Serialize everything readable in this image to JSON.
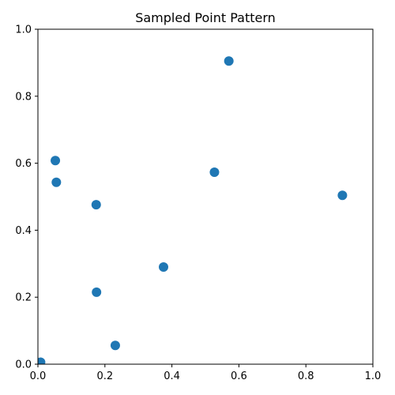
{
  "chart_data": {
    "type": "scatter",
    "title": "Sampled Point Pattern",
    "xlabel": "",
    "ylabel": "",
    "xlim": [
      0,
      1
    ],
    "ylim": [
      0,
      1
    ],
    "grid": false,
    "x_ticks": [
      {
        "value": 0.0,
        "label": "0.0"
      },
      {
        "value": 0.2,
        "label": "0.2"
      },
      {
        "value": 0.4,
        "label": "0.4"
      },
      {
        "value": 0.6,
        "label": "0.6"
      },
      {
        "value": 0.8,
        "label": "0.8"
      },
      {
        "value": 1.0,
        "label": "1.0"
      }
    ],
    "y_ticks": [
      {
        "value": 0.0,
        "label": "0.0"
      },
      {
        "value": 0.2,
        "label": "0.2"
      },
      {
        "value": 0.4,
        "label": "0.4"
      },
      {
        "value": 0.6,
        "label": "0.6"
      },
      {
        "value": 0.8,
        "label": "0.8"
      },
      {
        "value": 1.0,
        "label": "1.0"
      }
    ],
    "series": [
      {
        "color": "#1f77b4",
        "points": [
          {
            "x": 0.57,
            "y": 0.905
          },
          {
            "x": 0.052,
            "y": 0.608
          },
          {
            "x": 0.055,
            "y": 0.543
          },
          {
            "x": 0.527,
            "y": 0.573
          },
          {
            "x": 0.909,
            "y": 0.504
          },
          {
            "x": 0.174,
            "y": 0.476
          },
          {
            "x": 0.375,
            "y": 0.29
          },
          {
            "x": 0.175,
            "y": 0.215
          },
          {
            "x": 0.231,
            "y": 0.056
          },
          {
            "x": 0.008,
            "y": 0.006
          }
        ]
      }
    ]
  }
}
